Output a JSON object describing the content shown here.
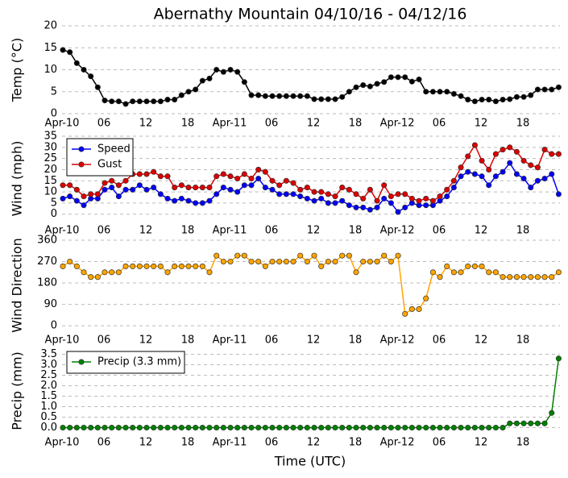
{
  "chart_data": [
    {
      "type": "line",
      "title": "Abernathy Mountain 04/10/16 - 04/12/16",
      "ylabel": "Temp (°C)",
      "categories": [
        "Apr-10",
        null,
        null,
        null,
        null,
        null,
        "06",
        null,
        null,
        null,
        null,
        null,
        "12",
        null,
        null,
        null,
        null,
        null,
        "18",
        null,
        null,
        null,
        null,
        null,
        "Apr-11",
        null,
        null,
        null,
        null,
        null,
        "06",
        null,
        null,
        null,
        null,
        null,
        "12",
        null,
        null,
        null,
        null,
        null,
        "18",
        null,
        null,
        null,
        null,
        null,
        "Apr-12",
        null,
        null,
        null,
        null,
        null,
        "06",
        null,
        null,
        null,
        null,
        null,
        "12",
        null,
        null,
        null,
        null,
        null,
        "18",
        null,
        null,
        null,
        null,
        null
      ],
      "ylim": [
        0,
        20
      ],
      "yticks": [
        0,
        5,
        10,
        15,
        20
      ],
      "grid": true,
      "series": [
        {
          "color": "#000000",
          "values": [
            14.5,
            14,
            11.5,
            10,
            8.5,
            6,
            3,
            2.8,
            2.8,
            2.2,
            2.8,
            2.8,
            2.8,
            2.8,
            2.8,
            3.2,
            3.2,
            4.2,
            5,
            5.5,
            7.5,
            8,
            10,
            9.5,
            10,
            9.5,
            7.2,
            4.2,
            4.2,
            4,
            4,
            4,
            4,
            4,
            4,
            4,
            3.3,
            3.3,
            3.3,
            3.3,
            3.8,
            5,
            6,
            6.5,
            6.2,
            6.8,
            7.2,
            8.3,
            8.3,
            8.3,
            7.3,
            7.8,
            5,
            5,
            5,
            5,
            4.5,
            4,
            3.2,
            2.8,
            3.2,
            3.2,
            2.8,
            3.2,
            3.3,
            3.8,
            3.8,
            4.2,
            5.5,
            5.5,
            5.5,
            6
          ]
        }
      ]
    },
    {
      "type": "line",
      "ylabel": "Wind (mph)",
      "legend": "upper left",
      "categories": [
        "Apr-10",
        null,
        null,
        null,
        null,
        null,
        "06",
        null,
        null,
        null,
        null,
        null,
        "12",
        null,
        null,
        null,
        null,
        null,
        "18",
        null,
        null,
        null,
        null,
        null,
        "Apr-11",
        null,
        null,
        null,
        null,
        null,
        "06",
        null,
        null,
        null,
        null,
        null,
        "12",
        null,
        null,
        null,
        null,
        null,
        "18",
        null,
        null,
        null,
        null,
        null,
        "Apr-12",
        null,
        null,
        null,
        null,
        null,
        "06",
        null,
        null,
        null,
        null,
        null,
        "12",
        null,
        null,
        null,
        null,
        null,
        "18",
        null,
        null,
        null,
        null,
        null
      ],
      "ylim": [
        -3,
        35
      ],
      "yticks": [
        0,
        5,
        10,
        15,
        20,
        25,
        30,
        35
      ],
      "grid": true,
      "series": [
        {
          "name": "Speed",
          "color": "#0000ff",
          "values": [
            7,
            8,
            6,
            4,
            7,
            7,
            11,
            12,
            8,
            11,
            11,
            13,
            11,
            12,
            9,
            7,
            6,
            7,
            6,
            5,
            5,
            6,
            9,
            12,
            11,
            10,
            13,
            13,
            16,
            12,
            11,
            9,
            9,
            9,
            8,
            7,
            6,
            7,
            5,
            5,
            6,
            4,
            3,
            3,
            2,
            3,
            7,
            5,
            1,
            3,
            5,
            4,
            4,
            4,
            6,
            8,
            12,
            17,
            19,
            18,
            17,
            13,
            17,
            19,
            23,
            18,
            16,
            12,
            15,
            16,
            18,
            9
          ]
        },
        {
          "name": "Gust",
          "color": "#dd0000",
          "values": [
            13,
            13,
            11,
            8,
            9,
            9,
            14,
            15,
            13,
            15,
            18,
            18,
            18,
            19,
            17,
            17,
            12,
            13,
            12,
            12,
            12,
            12,
            17,
            18,
            17,
            16,
            18,
            16,
            20,
            19,
            15,
            13,
            15,
            14,
            11,
            12,
            10,
            10,
            9,
            8,
            12,
            11,
            9,
            7,
            11,
            6,
            13,
            8,
            9,
            9,
            7,
            6,
            7,
            6,
            8,
            11,
            15,
            21,
            26,
            31,
            24,
            20,
            27,
            29,
            30,
            28,
            24,
            22,
            21,
            29,
            27,
            27
          ]
        }
      ]
    },
    {
      "type": "line",
      "ylabel": "Wind Direction",
      "categories": [
        "Apr-10",
        null,
        null,
        null,
        null,
        null,
        "06",
        null,
        null,
        null,
        null,
        null,
        "12",
        null,
        null,
        null,
        null,
        null,
        "18",
        null,
        null,
        null,
        null,
        null,
        "Apr-11",
        null,
        null,
        null,
        null,
        null,
        "06",
        null,
        null,
        null,
        null,
        null,
        "12",
        null,
        null,
        null,
        null,
        null,
        "18",
        null,
        null,
        null,
        null,
        null,
        "Apr-12",
        null,
        null,
        null,
        null,
        null,
        "06",
        null,
        null,
        null,
        null,
        null,
        "12",
        null,
        null,
        null,
        null,
        null,
        "18",
        null,
        null,
        null,
        null,
        null
      ],
      "ylim": [
        -20,
        360
      ],
      "yticks": [
        0,
        90,
        180,
        270,
        360
      ],
      "grid": true,
      "series": [
        {
          "color": "#ffa500",
          "values": [
            250,
            270,
            250,
            225,
            205,
            205,
            225,
            225,
            225,
            250,
            250,
            250,
            250,
            250,
            250,
            225,
            250,
            250,
            250,
            250,
            250,
            225,
            295,
            270,
            270,
            295,
            295,
            270,
            270,
            250,
            270,
            270,
            270,
            270,
            295,
            270,
            295,
            250,
            270,
            270,
            295,
            295,
            225,
            270,
            270,
            270,
            295,
            270,
            295,
            50,
            70,
            70,
            115,
            225,
            205,
            250,
            225,
            225,
            250,
            250,
            250,
            225,
            225,
            205,
            205,
            205,
            205,
            205,
            205,
            205,
            205,
            225
          ]
        }
      ]
    },
    {
      "type": "line",
      "ylabel": "Precip (mm)",
      "xlabel": "Time (UTC)",
      "legend": "upper left",
      "categories": [
        "Apr-10",
        null,
        null,
        null,
        null,
        null,
        "06",
        null,
        null,
        null,
        null,
        null,
        "12",
        null,
        null,
        null,
        null,
        null,
        "18",
        null,
        null,
        null,
        null,
        null,
        "Apr-11",
        null,
        null,
        null,
        null,
        null,
        "06",
        null,
        null,
        null,
        null,
        null,
        "12",
        null,
        null,
        null,
        null,
        null,
        "18",
        null,
        null,
        null,
        null,
        null,
        "Apr-12",
        null,
        null,
        null,
        null,
        null,
        "06",
        null,
        null,
        null,
        null,
        null,
        "12",
        null,
        null,
        null,
        null,
        null,
        "18",
        null,
        null,
        null,
        null,
        null
      ],
      "ylim": [
        -0.25,
        3.75
      ],
      "yticks": [
        {
          "value": 0,
          "label": "0.0"
        },
        0.5,
        {
          "value": 1,
          "label": "1.0"
        },
        1.5,
        {
          "value": 2,
          "label": "2.0"
        },
        2.5,
        {
          "value": 3,
          "label": "3.0"
        },
        3.5
      ],
      "grid": true,
      "series": [
        {
          "name": "Precip (3.3 mm)",
          "color": "#008000",
          "values": [
            0,
            0,
            0,
            0,
            0,
            0,
            0,
            0,
            0,
            0,
            0,
            0,
            0,
            0,
            0,
            0,
            0,
            0,
            0,
            0,
            0,
            0,
            0,
            0,
            0,
            0,
            0,
            0,
            0,
            0,
            0,
            0,
            0,
            0,
            0,
            0,
            0,
            0,
            0,
            0,
            0,
            0,
            0,
            0,
            0,
            0,
            0,
            0,
            0,
            0,
            0,
            0,
            0,
            0,
            0,
            0,
            0,
            0,
            0,
            0,
            0,
            0,
            0,
            0,
            0.2,
            0.2,
            0.2,
            0.2,
            0.2,
            0.2,
            0.7,
            3.3
          ]
        }
      ]
    }
  ]
}
